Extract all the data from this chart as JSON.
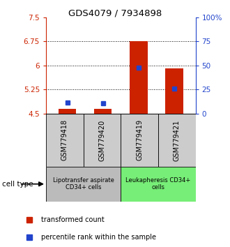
{
  "title": "GDS4079 / 7934898",
  "samples": [
    "GSM779418",
    "GSM779420",
    "GSM779419",
    "GSM779421"
  ],
  "red_bar_bottom": 4.5,
  "red_bar_tops": [
    4.65,
    4.65,
    6.75,
    5.9
  ],
  "blue_values": [
    4.85,
    4.82,
    5.93,
    5.27
  ],
  "ylim_left": [
    4.5,
    7.5
  ],
  "ylim_right": [
    0,
    100
  ],
  "yticks_left": [
    4.5,
    5.25,
    6.0,
    6.75,
    7.5
  ],
  "yticks_right": [
    0,
    25,
    50,
    75,
    100
  ],
  "ytick_labels_left": [
    "4.5",
    "5.25",
    "6",
    "6.75",
    "7.5"
  ],
  "ytick_labels_right": [
    "0",
    "25",
    "50",
    "75",
    "100%"
  ],
  "hlines": [
    5.25,
    6.0,
    6.75
  ],
  "bar_width": 0.5,
  "red_color": "#cc2200",
  "blue_color": "#2244cc",
  "group1_label": "Lipotransfer aspirate\nCD34+ cells",
  "group2_label": "Leukapheresis CD34+\ncells",
  "group1_color": "#bbbbbb",
  "group2_color": "#77ee77",
  "sample_box_color": "#cccccc",
  "legend_label_red": "transformed count",
  "legend_label_blue": "percentile rank within the sample",
  "cell_type_label": "cell type"
}
